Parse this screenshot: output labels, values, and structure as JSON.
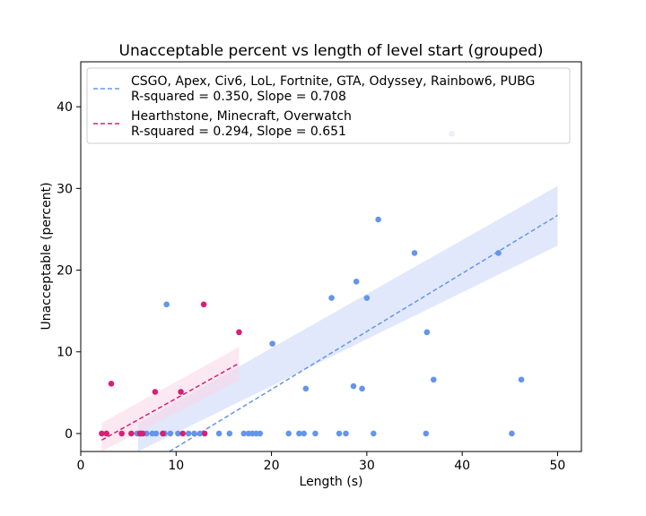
{
  "chart_data": {
    "type": "scatter",
    "title": "Unacceptable percent vs length of level start (grouped)",
    "xlabel": "Length (s)",
    "ylabel": "Unacceptable (percent)",
    "xlim": [
      0,
      52.5
    ],
    "ylim": [
      -2.2,
      45.5
    ],
    "xticks": [
      0,
      10,
      20,
      30,
      40,
      50
    ],
    "yticks": [
      0,
      10,
      20,
      30,
      40
    ],
    "grid": false,
    "legend_position": "top-left",
    "series": [
      {
        "name": "CSGO, Apex, Civ6, LoL, Fortnite, GTA, Odyssey, Rainbow6, PUBG",
        "stats": "R-squared = 0.350, Slope = 0.708",
        "color": "#6495ED",
        "band_color": "#c8d6fa",
        "points": [
          [
            5.9,
            0
          ],
          [
            6.3,
            0
          ],
          [
            6.9,
            0
          ],
          [
            7.5,
            0
          ],
          [
            7.9,
            0
          ],
          [
            8.8,
            0
          ],
          [
            9.4,
            0
          ],
          [
            10.2,
            0
          ],
          [
            11.3,
            0
          ],
          [
            11.9,
            0
          ],
          [
            12.5,
            0
          ],
          [
            14.5,
            0
          ],
          [
            15.6,
            0
          ],
          [
            17.1,
            0
          ],
          [
            17.6,
            0
          ],
          [
            18.0,
            0
          ],
          [
            18.4,
            0
          ],
          [
            18.8,
            0
          ],
          [
            21.8,
            0
          ],
          [
            22.9,
            0
          ],
          [
            23.4,
            0
          ],
          [
            24.6,
            0
          ],
          [
            27.1,
            0
          ],
          [
            27.8,
            0
          ],
          [
            30.7,
            0
          ],
          [
            36.2,
            0
          ],
          [
            45.2,
            0
          ],
          [
            9.0,
            15.8
          ],
          [
            20.1,
            11.0
          ],
          [
            23.6,
            5.5
          ],
          [
            26.3,
            16.6
          ],
          [
            28.6,
            5.8
          ],
          [
            28.9,
            18.6
          ],
          [
            29.5,
            5.5
          ],
          [
            30.0,
            16.6
          ],
          [
            31.2,
            26.2
          ],
          [
            35.0,
            22.1
          ],
          [
            36.3,
            12.4
          ],
          [
            37.0,
            6.6
          ],
          [
            38.9,
            36.7
          ],
          [
            43.8,
            22.1
          ],
          [
            46.2,
            6.6
          ]
        ],
        "fit": {
          "x": [
            9.3,
            50
          ],
          "y": [
            -2.2,
            26.7
          ]
        },
        "band": {
          "x": [
            6.0,
            50
          ],
          "lower": [
            -2.2,
            23.0
          ],
          "upper": [
            1.2,
            30.3
          ]
        }
      },
      {
        "name": "Hearthstone, Minecraft, Overwatch",
        "stats": "R-squared = 0.294, Slope = 0.651",
        "color": "#D62077",
        "band_color": "#f9d6e6",
        "points": [
          [
            2.2,
            0
          ],
          [
            2.7,
            0
          ],
          [
            4.3,
            0
          ],
          [
            5.3,
            0
          ],
          [
            6.2,
            0
          ],
          [
            6.5,
            0
          ],
          [
            8.6,
            0
          ],
          [
            10.7,
            0
          ],
          [
            13.0,
            0
          ],
          [
            3.2,
            6.1
          ],
          [
            7.8,
            5.1
          ],
          [
            10.5,
            5.1
          ],
          [
            12.9,
            15.8
          ],
          [
            16.6,
            12.4
          ]
        ],
        "fit": {
          "x": [
            2.2,
            16.6
          ],
          "y": [
            -0.8,
            8.6
          ]
        },
        "band": {
          "x": [
            2.2,
            16.6
          ],
          "lower": [
            -2.2,
            6.5
          ],
          "upper": [
            1.3,
            10.6
          ]
        }
      }
    ]
  }
}
